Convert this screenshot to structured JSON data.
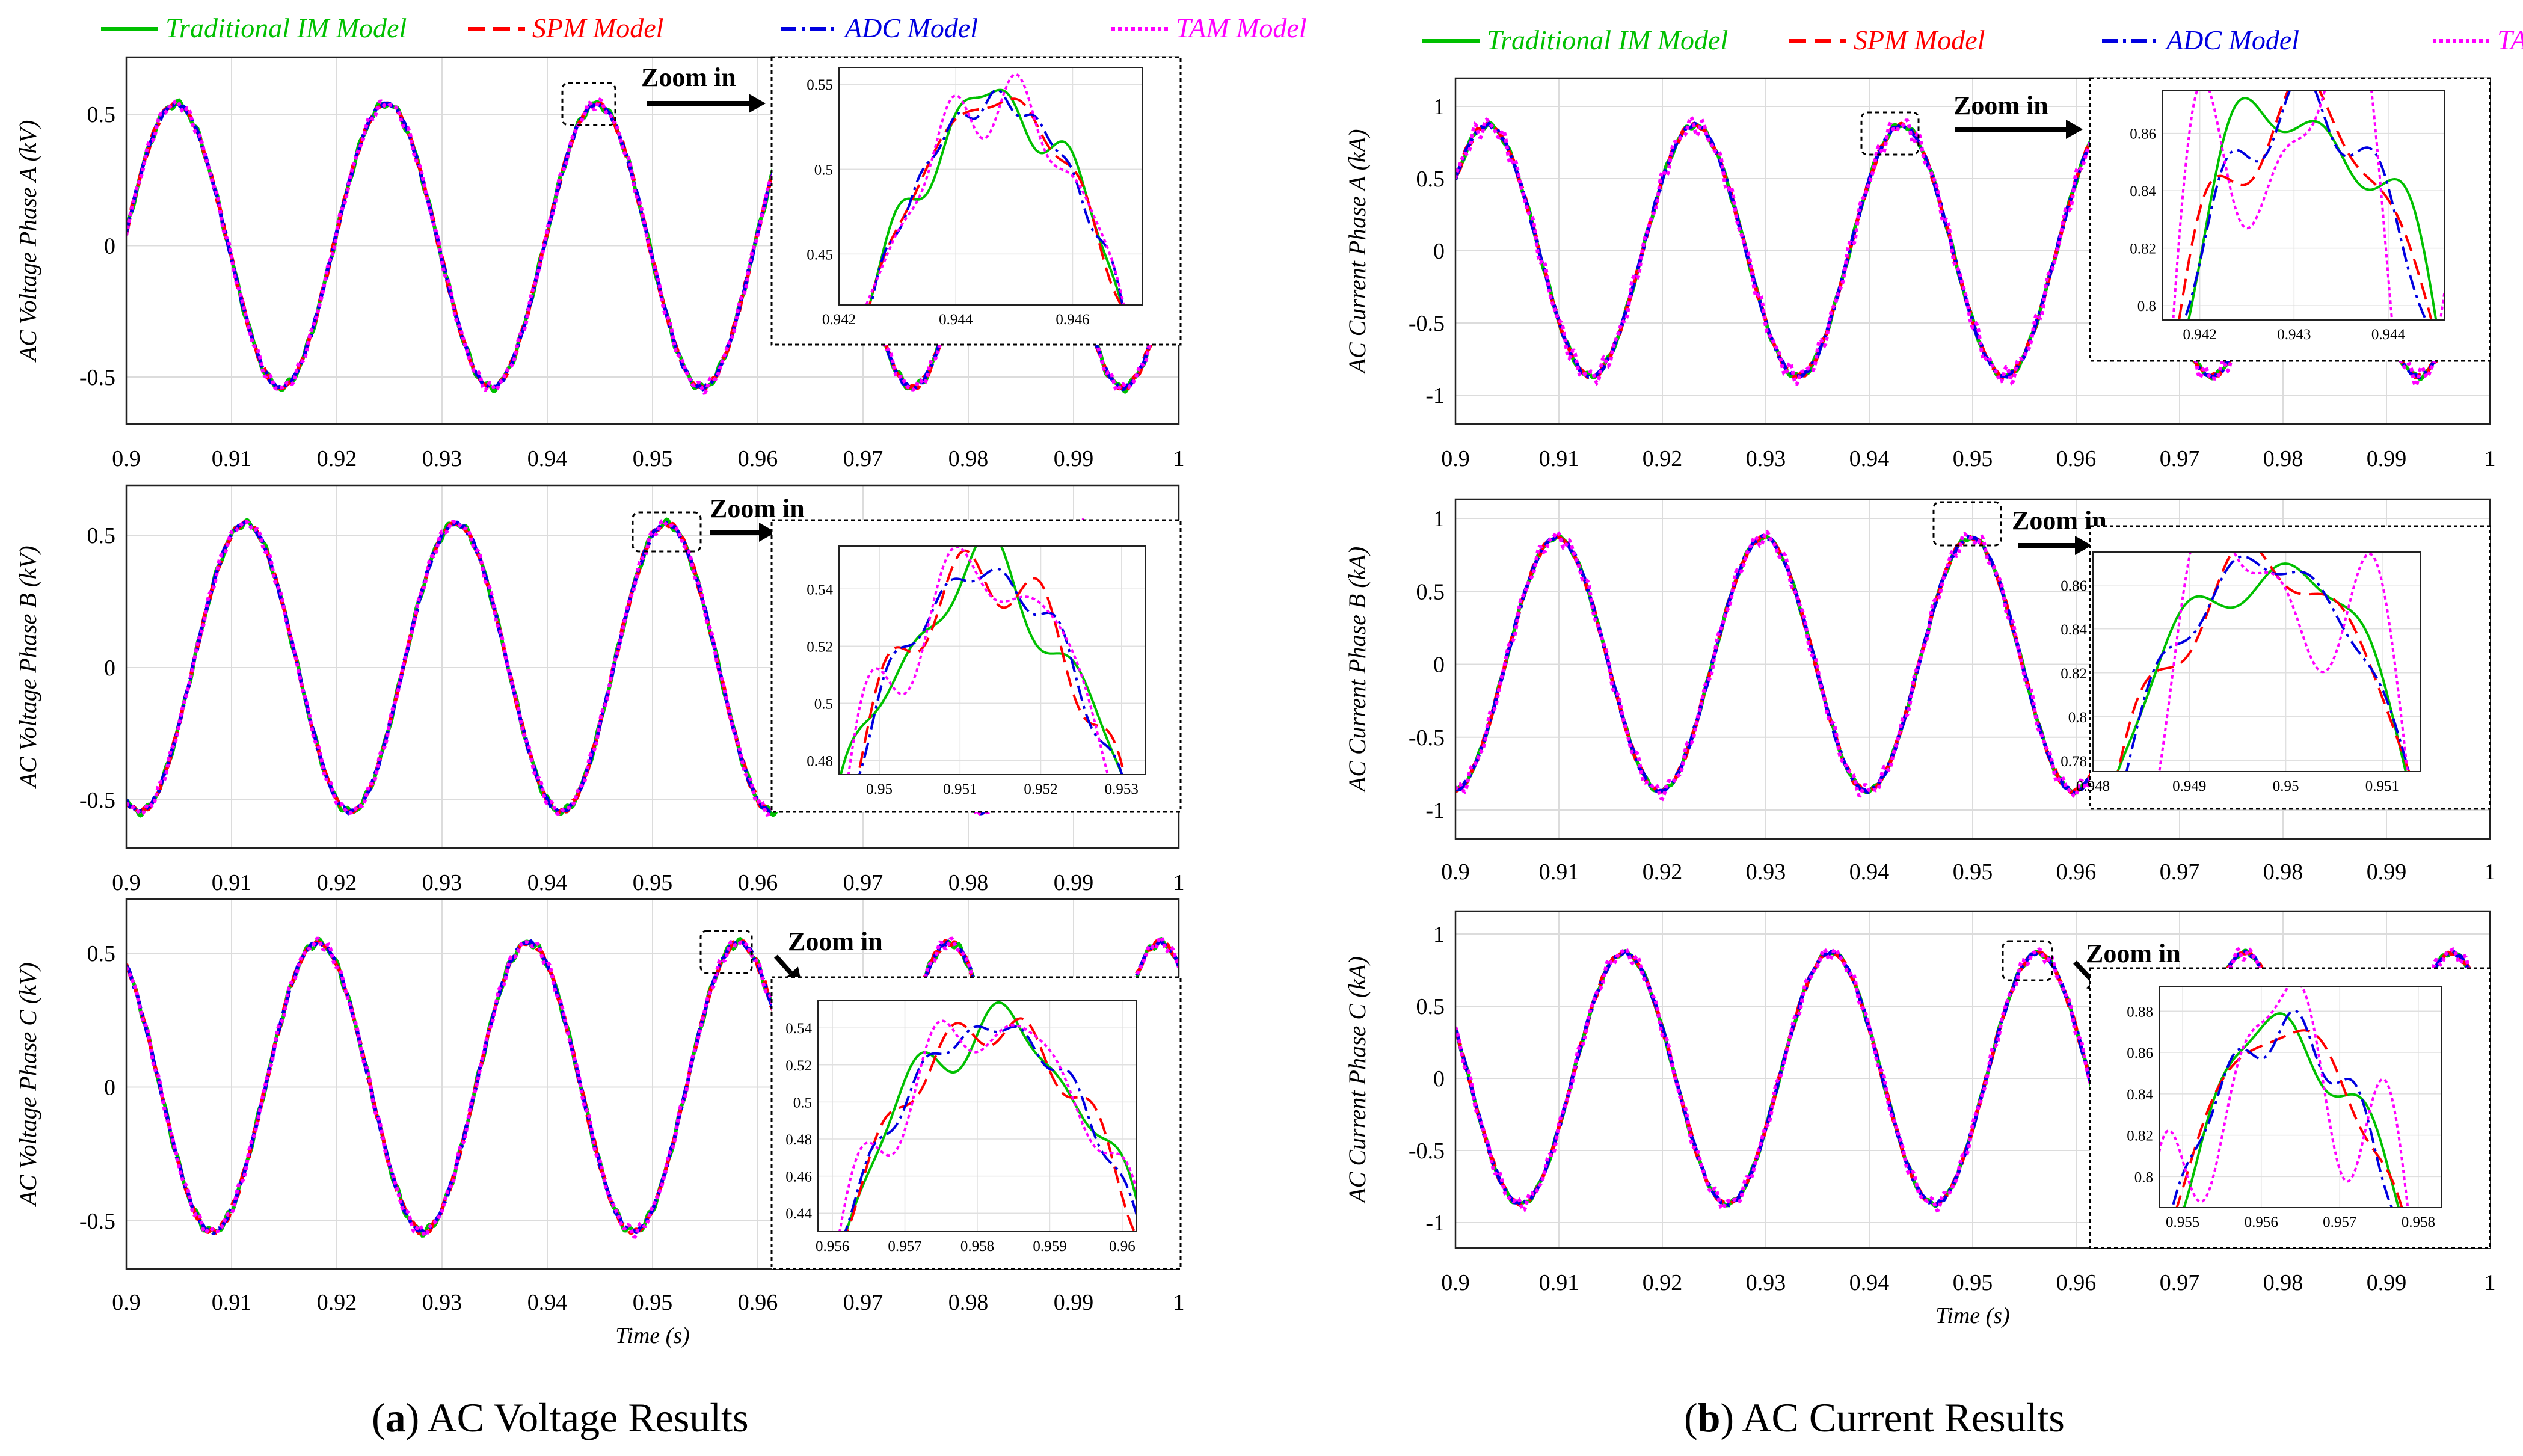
{
  "legend": [
    {
      "label": "Traditional IM Model",
      "color": "#00c000",
      "dash": "none"
    },
    {
      "label": "SPM Model",
      "color": "#ff0000",
      "dash": "28,14"
    },
    {
      "label": "ADC Model",
      "color": "#0000e0",
      "dash": "26,9,5,9"
    },
    {
      "label": "TAM Model",
      "color": "#ff00ff",
      "dash": "6,5"
    }
  ],
  "captions": {
    "a": {
      "letter": "a",
      "text": " AC Voltage Results",
      "open": "(",
      "close": ")"
    },
    "b": {
      "letter": "b",
      "text": " AC Current Results",
      "open": "(",
      "close": ")"
    }
  },
  "zoom_label": "Zoom in",
  "time_label": "Time (s)",
  "chart_data": [
    {
      "id": "va",
      "type": "line",
      "ylabel": "AC Voltage Phase A (kV)",
      "xlim": [
        0.9,
        1.0
      ],
      "ylim": [
        -0.6,
        0.6
      ],
      "x_ticks": [
        "0.9",
        "0.91",
        "0.92",
        "0.93",
        "0.94",
        "0.95",
        "0.96",
        "0.97",
        "0.98",
        "0.99",
        "1"
      ],
      "y_ticks": [
        {
          "v": 0.5,
          "t": "0.5"
        },
        {
          "v": 0,
          "t": "0"
        },
        {
          "v": -0.5,
          "t": "-0.5"
        }
      ],
      "amplitude": 0.54,
      "frequency_hz": 50,
      "peak_time": 0.9047,
      "zoom": {
        "xlim": [
          0.942,
          0.9472
        ],
        "ylim": [
          0.42,
          0.56
        ],
        "x_ticks": [
          {
            "v": 0.942,
            "t": "0.942"
          },
          {
            "v": 0.944,
            "t": "0.944"
          },
          {
            "v": 0.946,
            "t": "0.946"
          }
        ],
        "y_ticks": [
          {
            "v": 0.45,
            "t": "0.45"
          },
          {
            "v": 0.5,
            "t": "0.5"
          },
          {
            "v": 0.55,
            "t": "0.55"
          }
        ]
      }
    },
    {
      "id": "vb",
      "type": "line",
      "ylabel": "AC Voltage Phase B (kV)",
      "xlim": [
        0.9,
        1.0
      ],
      "ylim": [
        -0.6,
        0.6
      ],
      "x_ticks": [
        "0.9",
        "0.91",
        "0.92",
        "0.93",
        "0.94",
        "0.95",
        "0.96",
        "0.97",
        "0.98",
        "0.99",
        "1"
      ],
      "y_ticks": [
        {
          "v": 0.5,
          "t": "0.5"
        },
        {
          "v": 0,
          "t": "0"
        },
        {
          "v": -0.5,
          "t": "-0.5"
        }
      ],
      "amplitude": 0.545,
      "frequency_hz": 50,
      "peak_time": 0.9113,
      "zoom": {
        "xlim": [
          0.9495,
          0.9533
        ],
        "ylim": [
          0.475,
          0.555
        ],
        "x_ticks": [
          {
            "v": 0.95,
            "t": "0.95"
          },
          {
            "v": 0.951,
            "t": "0.951"
          },
          {
            "v": 0.952,
            "t": "0.952"
          },
          {
            "v": 0.953,
            "t": "0.953"
          }
        ],
        "y_ticks": [
          {
            "v": 0.48,
            "t": "0.48"
          },
          {
            "v": 0.5,
            "t": "0.5"
          },
          {
            "v": 0.52,
            "t": "0.52"
          },
          {
            "v": 0.54,
            "t": "0.54"
          }
        ]
      }
    },
    {
      "id": "vc",
      "type": "line",
      "ylabel": "AC Voltage Phase C (kV)",
      "xlim": [
        0.9,
        1.0
      ],
      "ylim": [
        -0.6,
        0.6
      ],
      "x_ticks": [
        "0.9",
        "0.91",
        "0.92",
        "0.93",
        "0.94",
        "0.95",
        "0.96",
        "0.97",
        "0.98",
        "0.99",
        "1"
      ],
      "y_ticks": [
        {
          "v": 0.5,
          "t": "0.5"
        },
        {
          "v": 0,
          "t": "0"
        },
        {
          "v": -0.5,
          "t": "-0.5"
        }
      ],
      "amplitude": 0.54,
      "frequency_hz": 50,
      "peak_time": 0.9182,
      "zoom": {
        "xlim": [
          0.9558,
          0.9602
        ],
        "ylim": [
          0.43,
          0.555
        ],
        "x_ticks": [
          {
            "v": 0.956,
            "t": "0.956"
          },
          {
            "v": 0.957,
            "t": "0.957"
          },
          {
            "v": 0.958,
            "t": "0.958"
          },
          {
            "v": 0.959,
            "t": "0.959"
          },
          {
            "v": 0.96,
            "t": "0.96"
          }
        ],
        "y_ticks": [
          {
            "v": 0.44,
            "t": "0.44"
          },
          {
            "v": 0.46,
            "t": "0.46"
          },
          {
            "v": 0.48,
            "t": "0.48"
          },
          {
            "v": 0.5,
            "t": "0.5"
          },
          {
            "v": 0.52,
            "t": "0.52"
          },
          {
            "v": 0.54,
            "t": "0.54"
          }
        ]
      },
      "xlabel": "Time (s)"
    },
    {
      "id": "ia",
      "type": "line",
      "ylabel": "AC Current Phase A (kA)",
      "xlim": [
        0.9,
        1.0
      ],
      "ylim": [
        -1.2,
        1.2
      ],
      "x_ticks": [
        "0.9",
        "0.91",
        "0.92",
        "0.93",
        "0.94",
        "0.95",
        "0.96",
        "0.97",
        "0.98",
        "0.99",
        "1"
      ],
      "y_ticks": [
        {
          "v": 1,
          "t": "1"
        },
        {
          "v": 0.5,
          "t": "0.5"
        },
        {
          "v": 0,
          "t": "0"
        },
        {
          "v": -0.5,
          "t": "-0.5"
        },
        {
          "v": -1,
          "t": "-1"
        }
      ],
      "amplitude": 0.87,
      "frequency_hz": 50,
      "peak_time": 0.9031,
      "zoom": {
        "xlim": [
          0.9416,
          0.9446
        ],
        "ylim": [
          0.795,
          0.875
        ],
        "x_ticks": [
          {
            "v": 0.942,
            "t": "0.942"
          },
          {
            "v": 0.943,
            "t": "0.943"
          },
          {
            "v": 0.944,
            "t": "0.944"
          }
        ],
        "y_ticks": [
          {
            "v": 0.8,
            "t": "0.8"
          },
          {
            "v": 0.82,
            "t": "0.82"
          },
          {
            "v": 0.84,
            "t": "0.84"
          },
          {
            "v": 0.86,
            "t": "0.86"
          }
        ]
      }
    },
    {
      "id": "ib",
      "type": "line",
      "ylabel": "AC Current Phase B (kA)",
      "xlim": [
        0.9,
        1.0
      ],
      "ylim": [
        -1.2,
        1.2
      ],
      "x_ticks": [
        "0.9",
        "0.91",
        "0.92",
        "0.93",
        "0.94",
        "0.95",
        "0.96",
        "0.97",
        "0.98",
        "0.99",
        "1"
      ],
      "y_ticks": [
        {
          "v": 1,
          "t": "1"
        },
        {
          "v": 0.5,
          "t": "0.5"
        },
        {
          "v": 0,
          "t": "0"
        },
        {
          "v": -0.5,
          "t": "-0.5"
        },
        {
          "v": -1,
          "t": "-1"
        }
      ],
      "amplitude": 0.87,
      "frequency_hz": 50,
      "peak_time": 0.9098,
      "zoom": {
        "xlim": [
          0.948,
          0.9514
        ],
        "ylim": [
          0.775,
          0.875
        ],
        "x_ticks": [
          {
            "v": 0.948,
            "t": "0.948"
          },
          {
            "v": 0.949,
            "t": "0.949"
          },
          {
            "v": 0.95,
            "t": "0.95"
          },
          {
            "v": 0.951,
            "t": "0.951"
          }
        ],
        "y_ticks": [
          {
            "v": 0.78,
            "t": "0.78"
          },
          {
            "v": 0.8,
            "t": "0.8"
          },
          {
            "v": 0.82,
            "t": "0.82"
          },
          {
            "v": 0.84,
            "t": "0.84"
          },
          {
            "v": 0.86,
            "t": "0.86"
          }
        ]
      }
    },
    {
      "id": "ic",
      "type": "line",
      "ylabel": "AC Current Phase C (kA)",
      "xlim": [
        0.9,
        1.0
      ],
      "ylim": [
        -1.2,
        1.2
      ],
      "x_ticks": [
        "0.9",
        "0.91",
        "0.92",
        "0.93",
        "0.94",
        "0.95",
        "0.96",
        "0.97",
        "0.98",
        "0.99",
        "1"
      ],
      "y_ticks": [
        {
          "v": 1,
          "t": "1"
        },
        {
          "v": 0.5,
          "t": "0.5"
        },
        {
          "v": 0,
          "t": "0"
        },
        {
          "v": -0.5,
          "t": "-0.5"
        },
        {
          "v": -1,
          "t": "-1"
        }
      ],
      "amplitude": 0.87,
      "frequency_hz": 50,
      "peak_time": 0.9163,
      "zoom": {
        "xlim": [
          0.9547,
          0.9583
        ],
        "ylim": [
          0.785,
          0.892
        ],
        "x_ticks": [
          {
            "v": 0.955,
            "t": "0.955"
          },
          {
            "v": 0.956,
            "t": "0.956"
          },
          {
            "v": 0.957,
            "t": "0.957"
          },
          {
            "v": 0.958,
            "t": "0.958"
          }
        ],
        "y_ticks": [
          {
            "v": 0.8,
            "t": "0.8"
          },
          {
            "v": 0.82,
            "t": "0.82"
          },
          {
            "v": 0.84,
            "t": "0.84"
          },
          {
            "v": 0.86,
            "t": "0.86"
          },
          {
            "v": 0.88,
            "t": "0.88"
          }
        ]
      },
      "xlabel": "Time (s)"
    }
  ]
}
